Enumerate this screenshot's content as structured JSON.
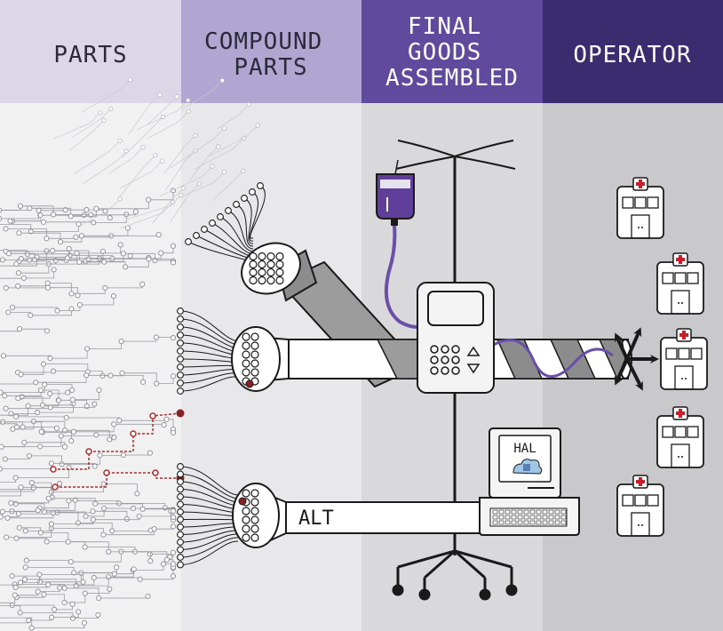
{
  "columns": [
    {
      "lines": [
        "PARTS"
      ],
      "header_color": "#dcd7e6",
      "text_color": "#2a2a3a"
    },
    {
      "lines": [
        "COMPOUND",
        "PARTS"
      ],
      "header_color": "#b1a6d1",
      "text_color": "#2a2a3a"
    },
    {
      "lines": [
        "FINAL",
        "GOODS",
        "ASSEMBLED"
      ],
      "header_color": "#5f4a9e",
      "text_color": "#ffffff"
    },
    {
      "lines": [
        "OPERATOR"
      ],
      "header_color": "#3a2c6f",
      "text_color": "#ffffff"
    }
  ],
  "body_colors": [
    "#f1f1f2",
    "#e8e8ea",
    "#d9d9dc",
    "#c9c9cc"
  ],
  "labels": {
    "alt": "ALT",
    "computer_screen": "HAL"
  },
  "icons": {
    "iv_pole": "iv-pole-icon",
    "iv_bag": "iv-bag-icon",
    "infusion_pump": "infusion-pump-icon",
    "computer": "computer-icon",
    "hospital": "hospital-icon"
  },
  "accent_colors": {
    "highlight_path": "#b22a2a",
    "purple_tube": "#6a4fa8",
    "cable_grey": "#9c9c9c"
  }
}
